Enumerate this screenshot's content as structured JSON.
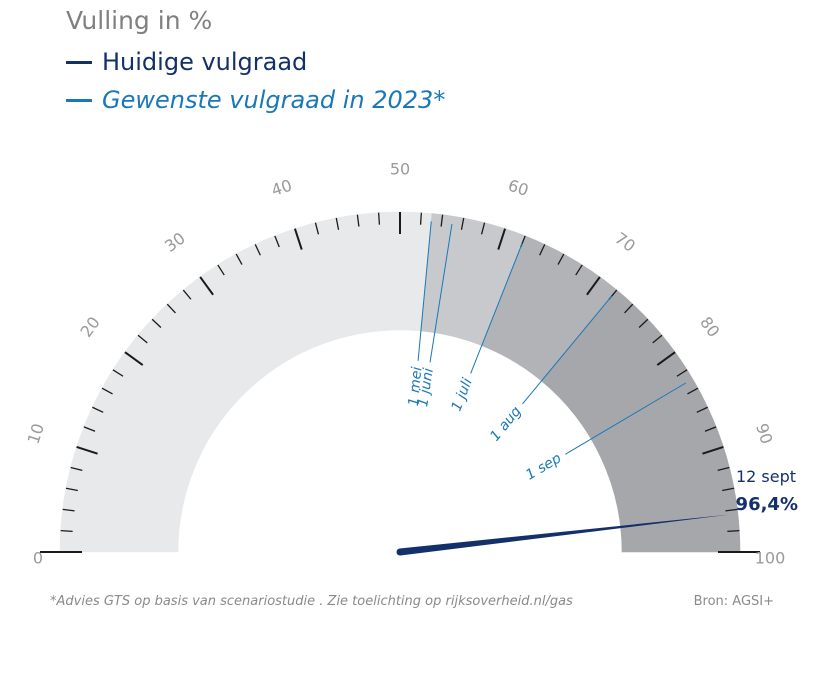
{
  "title": "Vulling in %",
  "legend": {
    "current": {
      "label": "Huidige vulgraad",
      "color": "#13306b"
    },
    "target": {
      "label": "Gewenste vulgraad in 2023*",
      "color": "#1a78b8"
    }
  },
  "chart_data": {
    "type": "gauge",
    "title": "Vulling in %",
    "range": [
      0,
      100
    ],
    "tick_labels": [
      "0",
      "10",
      "20",
      "30",
      "40",
      "50",
      "60",
      "70",
      "80",
      "90",
      "100"
    ],
    "current": {
      "date_label": "12 sept",
      "value": 96.4,
      "value_label": "96,4%"
    },
    "targets": [
      {
        "label": "1 mei",
        "value": 53
      },
      {
        "label": "1 juni",
        "value": 55
      },
      {
        "label": "1 juli",
        "value": 62
      },
      {
        "label": "1 aug",
        "value": 72
      },
      {
        "label": "1 sep",
        "value": 83
      }
    ],
    "band_colors": [
      "#e8e9eb",
      "#c8c9cc",
      "#b2b3b7",
      "#a6a7ab"
    ]
  },
  "footnote": "*Advies GTS op basis van scenariostudie . Zie toelichting op rijksoverheid.nl/gas",
  "source": "Bron: AGSI+"
}
